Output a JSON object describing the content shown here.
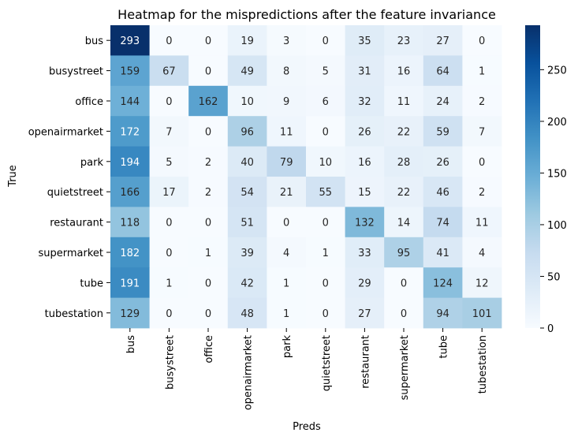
{
  "chart_data": {
    "type": "heatmap",
    "title": "Heatmap for the mispredictions after the feature invariance",
    "xlabel": "Preds",
    "ylabel": "True",
    "x_categories": [
      "bus",
      "busystreet",
      "office",
      "openairmarket",
      "park",
      "quietstreet",
      "restaurant",
      "supermarket",
      "tube",
      "tubestation"
    ],
    "y_categories": [
      "bus",
      "busystreet",
      "office",
      "openairmarket",
      "park",
      "quietstreet",
      "restaurant",
      "supermarket",
      "tube",
      "tubestation"
    ],
    "values": [
      [
        293,
        0,
        0,
        19,
        3,
        0,
        35,
        23,
        27,
        0
      ],
      [
        159,
        67,
        0,
        49,
        8,
        5,
        31,
        16,
        64,
        1
      ],
      [
        144,
        0,
        162,
        10,
        9,
        6,
        32,
        11,
        24,
        2
      ],
      [
        172,
        7,
        0,
        96,
        11,
        0,
        26,
        22,
        59,
        7
      ],
      [
        194,
        5,
        2,
        40,
        79,
        10,
        16,
        28,
        26,
        0
      ],
      [
        166,
        17,
        2,
        54,
        21,
        55,
        15,
        22,
        46,
        2
      ],
      [
        118,
        0,
        0,
        51,
        0,
        0,
        132,
        14,
        74,
        11
      ],
      [
        182,
        0,
        1,
        39,
        4,
        1,
        33,
        95,
        41,
        4
      ],
      [
        191,
        1,
        0,
        42,
        1,
        0,
        29,
        0,
        124,
        12
      ],
      [
        129,
        0,
        0,
        48,
        1,
        0,
        27,
        0,
        94,
        101
      ]
    ],
    "colormap": "Blues",
    "vmin": 0,
    "vmax": 293,
    "colorbar_ticks": [
      "0",
      "50",
      "100",
      "150",
      "200",
      "250"
    ],
    "annotations": "values shown in each cell",
    "grid": false
  }
}
